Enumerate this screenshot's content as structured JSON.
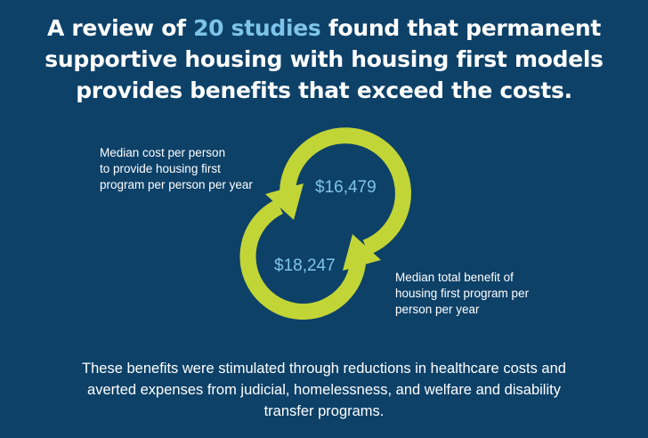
{
  "headline": {
    "line1_before": "A review of ",
    "line1_highlight": "20 studies",
    "line1_after": " found that permanent",
    "line2": "supportive housing with housing first models",
    "line3": "provides benefits that exceed the costs."
  },
  "cost": {
    "label_line1": "Median cost per person",
    "label_line2": "to provide housing first",
    "label_line3": "program per person per year",
    "amount": "$16,479"
  },
  "benefit": {
    "label_line1": "Median total benefit of",
    "label_line2": "housing first program per",
    "label_line3": "person per year",
    "amount": "$18,247"
  },
  "footer": {
    "line1": "These benefits were stimulated through reductions in healthcare costs and",
    "line2": "averted expenses from judicial, homelessness, and welfare and disability",
    "line3": "transfer programs."
  },
  "colors": {
    "background": "#0d4168",
    "highlight": "#7ec4ea",
    "ring": "#c2d536"
  }
}
